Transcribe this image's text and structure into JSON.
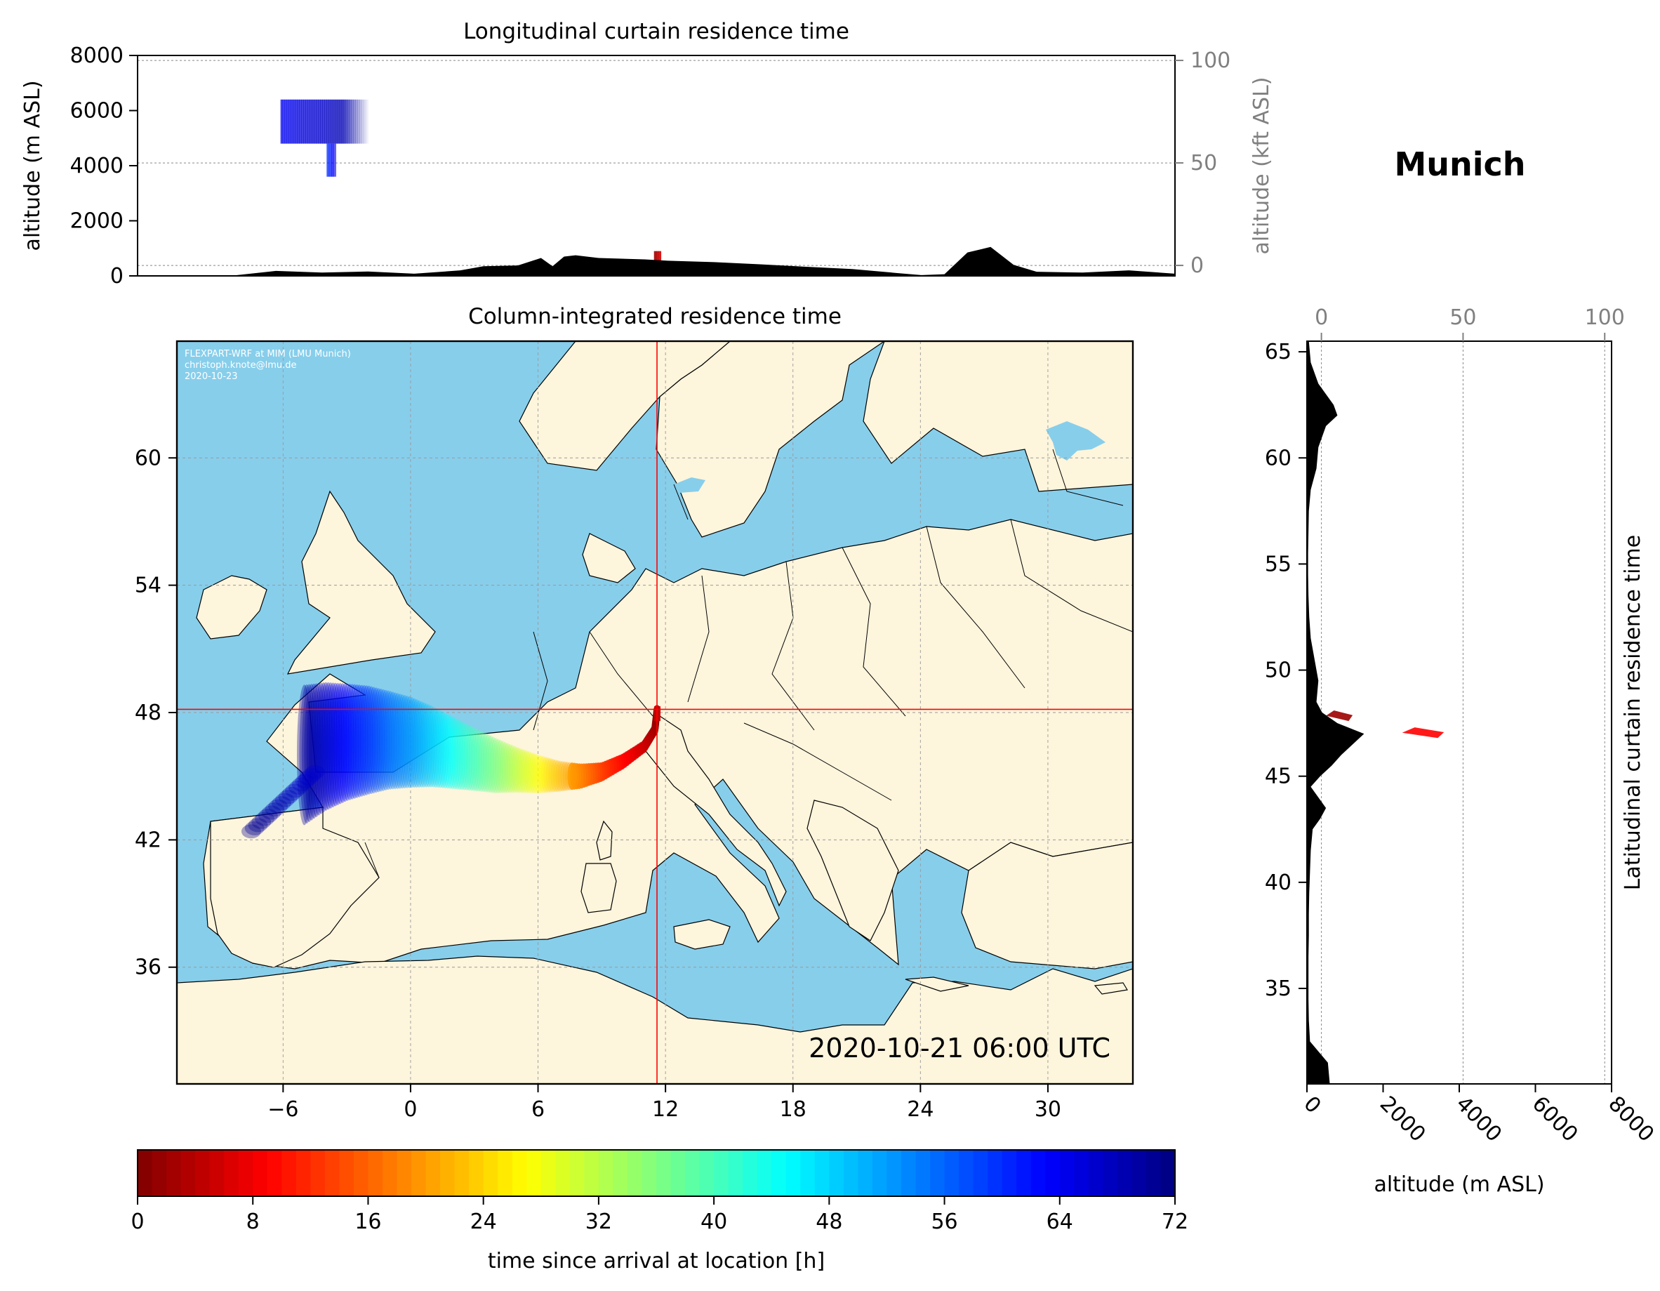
{
  "figure": {
    "location_title": "Munich",
    "credit": [
      "FLEXPART-WRF at MIM (LMU Munich)",
      "christoph.knote@lmu.de",
      "2020-10-23"
    ],
    "timestamp": "2020-10-21 06:00 UTC",
    "colors": {
      "ocean": "#87ceeb",
      "land": "#fdf5dc",
      "marker": "#ff0000",
      "terrain": "#000000"
    }
  },
  "chart_data": [
    {
      "id": "longitudinal",
      "type": "area",
      "title": "Longitudinal curtain residence time",
      "ylabel": "altitude (m ASL)",
      "ylim": [
        0,
        8000
      ],
      "yticks": [
        "0",
        "2000",
        "4000",
        "6000",
        "8000"
      ],
      "y2label": "altitude (kft ASL)",
      "y2ticks": [
        "0",
        "50",
        "100"
      ],
      "y2_gridlines_m": [
        0,
        15240,
        30480
      ],
      "xlim": [
        -11,
        34
      ],
      "terrain_profile": {
        "lon": [
          -11,
          -7,
          -5,
          -3,
          -1,
          1,
          3,
          4,
          5.5,
          6.5,
          7,
          7.5,
          8,
          9,
          11,
          12,
          14,
          16,
          18,
          20,
          22,
          23,
          24,
          25,
          26,
          27,
          28,
          30,
          32,
          34
        ],
        "alt_m": [
          0,
          0,
          180,
          120,
          160,
          80,
          200,
          350,
          380,
          650,
          350,
          700,
          750,
          650,
          600,
          550,
          500,
          420,
          330,
          250,
          100,
          30,
          60,
          850,
          1050,
          400,
          150,
          120,
          200,
          80
        ]
      },
      "residence_blocks": [
        {
          "lon_range": [
            -4.8,
            -1.0
          ],
          "alt_range_m": [
            4800,
            6400
          ],
          "time_h": 64
        },
        {
          "lon_range": [
            -2.8,
            -2.4
          ],
          "alt_range_m": [
            3600,
            4800
          ],
          "time_h": 60
        },
        {
          "lon_range": [
            11.4,
            11.7
          ],
          "alt_range_m": [
            450,
            900
          ],
          "time_h": 2
        }
      ]
    },
    {
      "id": "map",
      "type": "heatmap",
      "title": "Column-integrated residence time",
      "xlim": [
        -11,
        34
      ],
      "ylim": [
        30.5,
        65.5
      ],
      "xticks": [
        "−6",
        "0",
        "6",
        "12",
        "18",
        "24",
        "30"
      ],
      "yticks": [
        "36",
        "42",
        "48",
        "54",
        "60"
      ],
      "crosshair": {
        "lon": 11.6,
        "lat": 48.15
      },
      "trajectory": {
        "lon": [
          11.6,
          11.5,
          11.0,
          10.0,
          9.0,
          8.0,
          7.0,
          6.0,
          5.0,
          4.0,
          3.0,
          2.0,
          1.0,
          0.0,
          -1.0,
          -2.0,
          -3.0,
          -4.0,
          -5.0
        ],
        "lat": [
          48.1,
          47.2,
          46.4,
          45.7,
          45.2,
          45.0,
          45.0,
          45.1,
          45.3,
          45.5,
          45.8,
          46.1,
          46.4,
          46.6,
          46.7,
          46.7,
          46.6,
          46.4,
          46.0
        ],
        "time_h": [
          0,
          2,
          5,
          9,
          13,
          18,
          22,
          27,
          31,
          36,
          40,
          44,
          48,
          52,
          55,
          59,
          62,
          66,
          70
        ]
      }
    },
    {
      "id": "latitudinal",
      "type": "area",
      "title": "Latitudinal curtain residence time",
      "xlabel": "altitude (m ASL)",
      "xlim": [
        0,
        8000
      ],
      "xticks": [
        "0",
        "2000",
        "4000",
        "6000",
        "8000"
      ],
      "x2ticks": [
        "0",
        "50",
        "100"
      ],
      "ylim": [
        30.5,
        65.5
      ],
      "yticks": [
        "35",
        "40",
        "45",
        "50",
        "55",
        "60",
        "65"
      ],
      "terrain_profile": {
        "lat": [
          30.5,
          31.5,
          32.5,
          33.5,
          34.5,
          35.5,
          36.5,
          37.5,
          38.5,
          39.5,
          40.5,
          41.5,
          42.5,
          43.0,
          43.5,
          44.0,
          44.5,
          45.0,
          45.5,
          46.0,
          46.5,
          47.0,
          47.5,
          48.0,
          48.5,
          49.5,
          50.5,
          51.5,
          52.5,
          53.5,
          54.5,
          55.5,
          56.5,
          57.5,
          58.5,
          59.5,
          60.5,
          61.5,
          62.0,
          62.5,
          63.5,
          64.5,
          65.5
        ],
        "alt_m": [
          600,
          550,
          80,
          50,
          40,
          40,
          40,
          50,
          50,
          60,
          80,
          100,
          150,
          350,
          500,
          300,
          100,
          350,
          650,
          900,
          1200,
          1500,
          800,
          400,
          250,
          300,
          200,
          100,
          60,
          40,
          30,
          30,
          40,
          50,
          100,
          250,
          300,
          500,
          800,
          700,
          300,
          100,
          50
        ]
      },
      "residence_blocks": [
        {
          "lat_range": [
            47.6,
            48.1
          ],
          "alt_range_m": [
            500,
            1200
          ],
          "time_h": 2
        },
        {
          "lat_range": [
            46.8,
            47.3
          ],
          "alt_range_m": [
            2500,
            3600
          ],
          "time_h": 9
        }
      ]
    }
  ],
  "colorbar": {
    "label": "time since arrival at location [h]",
    "range": [
      0,
      72
    ],
    "ticks": [
      "0",
      "8",
      "16",
      "24",
      "32",
      "40",
      "48",
      "56",
      "64",
      "72"
    ],
    "colormap": "jet_r"
  }
}
